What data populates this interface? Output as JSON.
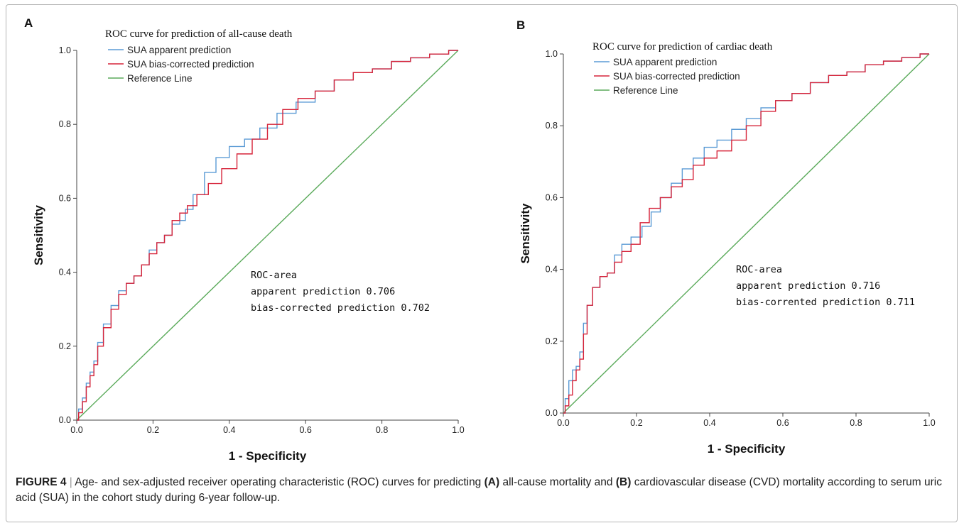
{
  "chart_data": [
    {
      "type": "line",
      "panel_label": "A",
      "title": "ROC curve for prediction of all-cause death",
      "xlabel": "1 - Specificity",
      "ylabel": "Sensitivity",
      "xlim": [
        0,
        1
      ],
      "ylim": [
        0,
        1
      ],
      "x_ticks": [
        "0.0",
        "0.2",
        "0.4",
        "0.6",
        "0.8",
        "1.0"
      ],
      "y_ticks": [
        "0.0",
        "0.2",
        "0.4",
        "0.6",
        "0.8",
        "1.0"
      ],
      "grid": false,
      "legend_position": "top-left",
      "series": [
        {
          "name": "SUA apparent prediction",
          "color": "#5b9bd5",
          "points": [
            [
              0,
              0
            ],
            [
              0.01,
              0.03
            ],
            [
              0.02,
              0.06
            ],
            [
              0.03,
              0.1
            ],
            [
              0.04,
              0.13
            ],
            [
              0.05,
              0.16
            ],
            [
              0.06,
              0.21
            ],
            [
              0.08,
              0.26
            ],
            [
              0.1,
              0.31
            ],
            [
              0.12,
              0.35
            ],
            [
              0.14,
              0.37
            ],
            [
              0.16,
              0.39
            ],
            [
              0.18,
              0.42
            ],
            [
              0.2,
              0.46
            ],
            [
              0.22,
              0.48
            ],
            [
              0.24,
              0.5
            ],
            [
              0.26,
              0.53
            ],
            [
              0.28,
              0.54
            ],
            [
              0.29,
              0.57
            ],
            [
              0.32,
              0.61
            ],
            [
              0.35,
              0.67
            ],
            [
              0.38,
              0.71
            ],
            [
              0.42,
              0.74
            ],
            [
              0.46,
              0.76
            ],
            [
              0.5,
              0.79
            ],
            [
              0.55,
              0.83
            ],
            [
              0.6,
              0.86
            ],
            [
              0.65,
              0.89
            ],
            [
              0.7,
              0.92
            ],
            [
              0.75,
              0.94
            ],
            [
              0.8,
              0.95
            ],
            [
              0.85,
              0.97
            ],
            [
              0.9,
              0.98
            ],
            [
              0.95,
              0.99
            ],
            [
              1.0,
              1.0
            ]
          ]
        },
        {
          "name": "SUA bias-corrected prediction",
          "color": "#d6243a",
          "points": [
            [
              0,
              0
            ],
            [
              0.01,
              0.02
            ],
            [
              0.02,
              0.05
            ],
            [
              0.03,
              0.09
            ],
            [
              0.04,
              0.12
            ],
            [
              0.05,
              0.15
            ],
            [
              0.06,
              0.2
            ],
            [
              0.08,
              0.25
            ],
            [
              0.1,
              0.3
            ],
            [
              0.12,
              0.34
            ],
            [
              0.14,
              0.37
            ],
            [
              0.16,
              0.39
            ],
            [
              0.18,
              0.42
            ],
            [
              0.2,
              0.45
            ],
            [
              0.22,
              0.48
            ],
            [
              0.24,
              0.5
            ],
            [
              0.26,
              0.54
            ],
            [
              0.28,
              0.56
            ],
            [
              0.3,
              0.58
            ],
            [
              0.33,
              0.61
            ],
            [
              0.36,
              0.64
            ],
            [
              0.4,
              0.68
            ],
            [
              0.44,
              0.72
            ],
            [
              0.48,
              0.76
            ],
            [
              0.52,
              0.8
            ],
            [
              0.56,
              0.84
            ],
            [
              0.6,
              0.87
            ],
            [
              0.65,
              0.89
            ],
            [
              0.7,
              0.92
            ],
            [
              0.75,
              0.94
            ],
            [
              0.8,
              0.95
            ],
            [
              0.85,
              0.97
            ],
            [
              0.9,
              0.98
            ],
            [
              0.95,
              0.99
            ],
            [
              1.0,
              1.0
            ]
          ]
        },
        {
          "name": "Reference Line",
          "color": "#5aaa5a",
          "points": [
            [
              0,
              0
            ],
            [
              1,
              1
            ]
          ]
        }
      ],
      "annotation": {
        "heading": "ROC-area",
        "line1": "apparent prediction 0.706",
        "line2": "bias-corrected prediction 0.702"
      }
    },
    {
      "type": "line",
      "panel_label": "B",
      "title": "ROC curve for prediction of cardiac death",
      "xlabel": "1 - Specificity",
      "ylabel": "Sensitivity",
      "xlim": [
        0,
        1
      ],
      "ylim": [
        0,
        1
      ],
      "x_ticks": [
        "0.0",
        "0.2",
        "0.4",
        "0.6",
        "0.8",
        "1.0"
      ],
      "y_ticks": [
        "0.0",
        "0.2",
        "0.4",
        "0.6",
        "0.8",
        "1.0"
      ],
      "grid": false,
      "legend_position": "top-left",
      "series": [
        {
          "name": "SUA apparent prediction",
          "color": "#5b9bd5",
          "points": [
            [
              0,
              0
            ],
            [
              0.01,
              0.04
            ],
            [
              0.02,
              0.09
            ],
            [
              0.03,
              0.12
            ],
            [
              0.04,
              0.13
            ],
            [
              0.05,
              0.17
            ],
            [
              0.06,
              0.25
            ],
            [
              0.07,
              0.3
            ],
            [
              0.09,
              0.35
            ],
            [
              0.11,
              0.38
            ],
            [
              0.13,
              0.39
            ],
            [
              0.15,
              0.44
            ],
            [
              0.17,
              0.47
            ],
            [
              0.2,
              0.49
            ],
            [
              0.23,
              0.52
            ],
            [
              0.25,
              0.56
            ],
            [
              0.28,
              0.6
            ],
            [
              0.31,
              0.64
            ],
            [
              0.34,
              0.68
            ],
            [
              0.37,
              0.71
            ],
            [
              0.4,
              0.74
            ],
            [
              0.44,
              0.76
            ],
            [
              0.48,
              0.79
            ],
            [
              0.52,
              0.82
            ],
            [
              0.56,
              0.85
            ],
            [
              0.6,
              0.87
            ],
            [
              0.65,
              0.89
            ],
            [
              0.7,
              0.92
            ],
            [
              0.75,
              0.94
            ],
            [
              0.8,
              0.95
            ],
            [
              0.85,
              0.97
            ],
            [
              0.9,
              0.98
            ],
            [
              0.95,
              0.99
            ],
            [
              1.0,
              1.0
            ]
          ]
        },
        {
          "name": "SUA bias-corrected prediction",
          "color": "#d6243a",
          "points": [
            [
              0,
              0
            ],
            [
              0.01,
              0.02
            ],
            [
              0.02,
              0.05
            ],
            [
              0.03,
              0.09
            ],
            [
              0.04,
              0.12
            ],
            [
              0.05,
              0.15
            ],
            [
              0.06,
              0.22
            ],
            [
              0.07,
              0.3
            ],
            [
              0.09,
              0.35
            ],
            [
              0.11,
              0.38
            ],
            [
              0.13,
              0.39
            ],
            [
              0.15,
              0.42
            ],
            [
              0.17,
              0.45
            ],
            [
              0.2,
              0.47
            ],
            [
              0.22,
              0.53
            ],
            [
              0.25,
              0.57
            ],
            [
              0.28,
              0.6
            ],
            [
              0.31,
              0.63
            ],
            [
              0.34,
              0.65
            ],
            [
              0.37,
              0.69
            ],
            [
              0.4,
              0.71
            ],
            [
              0.44,
              0.73
            ],
            [
              0.48,
              0.76
            ],
            [
              0.52,
              0.8
            ],
            [
              0.56,
              0.84
            ],
            [
              0.6,
              0.87
            ],
            [
              0.65,
              0.89
            ],
            [
              0.7,
              0.92
            ],
            [
              0.75,
              0.94
            ],
            [
              0.8,
              0.95
            ],
            [
              0.85,
              0.97
            ],
            [
              0.9,
              0.98
            ],
            [
              0.95,
              0.99
            ],
            [
              1.0,
              1.0
            ]
          ]
        },
        {
          "name": "Reference Line",
          "color": "#5aaa5a",
          "points": [
            [
              0,
              0
            ],
            [
              1,
              1
            ]
          ]
        }
      ],
      "annotation": {
        "heading": "ROC-area",
        "line1": "apparent prediction 0.716",
        "line2": "bias-corrented prediction 0.711"
      }
    }
  ],
  "caption": {
    "figure_label": "FIGURE 4",
    "separator": "|",
    "part1": "Age- and sex-adjusted receiver operating characteristic (ROC) curves for predicting",
    "label_a": "(A)",
    "part2": "all-cause mortality and",
    "label_b": "(B)",
    "part3": "cardiovascular disease (CVD) mortality according to serum uric acid (SUA) in the cohort study during 6-year follow-up."
  }
}
